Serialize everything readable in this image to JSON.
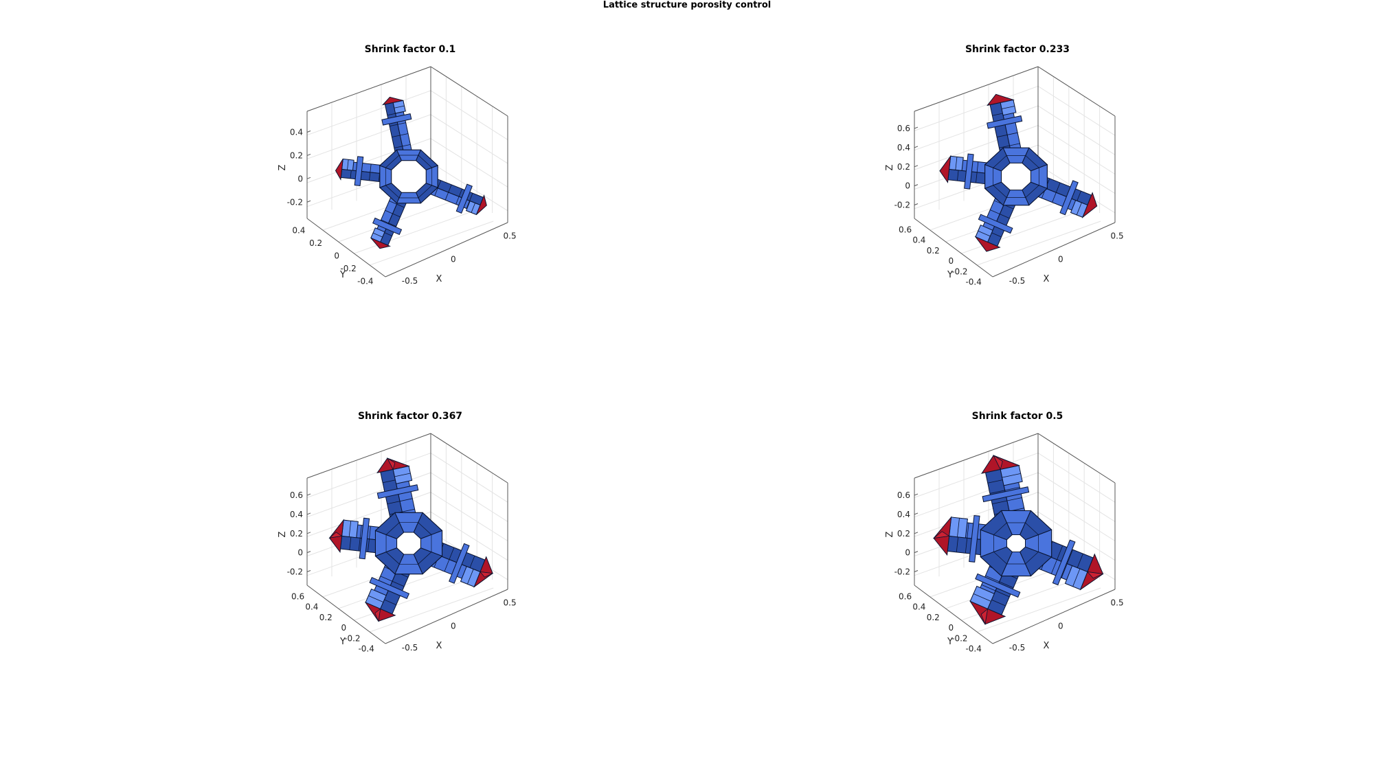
{
  "figure": {
    "title": "Lattice structure porosity control"
  },
  "colors": {
    "cell_face": "#4a74dd",
    "cell_face_light": "#6d97f5",
    "cell_face_dark": "#2b4fa8",
    "end_cap": "#b01528",
    "end_cap_light": "#cc2233",
    "edge": "#0a1430",
    "axis": "#555555",
    "grid": "#e3e3e3"
  },
  "panels": [
    {
      "title": "Shrink factor 0.1",
      "shrink": 0.1,
      "z_ticks": [
        "-0.2",
        "0",
        "0.2",
        "0.4"
      ],
      "y_ticks": [
        "-0.4",
        "-0.2",
        "0",
        "0.2",
        "0.4"
      ],
      "x_ticks": [
        "-0.5",
        "0",
        "0.5"
      ],
      "xlabel": "X",
      "ylabel": "Y",
      "zlabel": "Z"
    },
    {
      "title": "Shrink factor 0.233",
      "shrink": 0.233,
      "z_ticks": [
        "-0.2",
        "0",
        "0.2",
        "0.4",
        "0.6"
      ],
      "y_ticks": [
        "-0.4",
        "-0.2",
        "0",
        "0.2",
        "0.4",
        "0.6"
      ],
      "x_ticks": [
        "-0.5",
        "0",
        "0.5"
      ],
      "xlabel": "X",
      "ylabel": "Y",
      "zlabel": "Z"
    },
    {
      "title": "Shrink factor 0.367",
      "shrink": 0.367,
      "z_ticks": [
        "-0.2",
        "0",
        "0.2",
        "0.4",
        "0.6"
      ],
      "y_ticks": [
        "-0.4",
        "-0.2",
        "0",
        "0.2",
        "0.4",
        "0.6"
      ],
      "x_ticks": [
        "-0.5",
        "0",
        "0.5"
      ],
      "xlabel": "X",
      "ylabel": "Y",
      "zlabel": "Z"
    },
    {
      "title": "Shrink factor 0.5",
      "shrink": 0.5,
      "z_ticks": [
        "-0.2",
        "0",
        "0.2",
        "0.4",
        "0.6"
      ],
      "y_ticks": [
        "-0.4",
        "-0.2",
        "0",
        "0.2",
        "0.4",
        "0.6"
      ],
      "x_ticks": [
        "-0.5",
        "0",
        "0.5"
      ],
      "xlabel": "X",
      "ylabel": "Y",
      "zlabel": "Z"
    }
  ]
}
